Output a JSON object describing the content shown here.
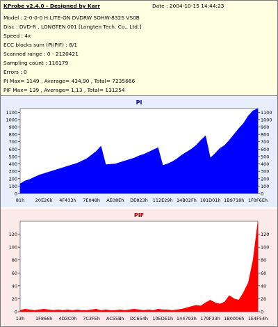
{
  "header": {
    "title": "KProbe v2.4.0 - Designed by Karr",
    "date": "Date : 2004-10-15 14:44:23"
  },
  "info_lines": [
    "Model : 2-0-0-0 H:LITE-ON DVDRW SOHW-832S  VS0B",
    "Disc : DVD-R , LONGTEN 001 [Longten Tech. Co., Ltd.]",
    "Speed : 4x",
    "ECC blocks sum (PI/PIF) : 8/1",
    "Scanned range : 0 - 2120421",
    "Sampling count : 116179",
    "Errors : 0",
    "PI Max= 1149 , Average= 434,90 , Total= 7235666",
    "PIF Max= 139 , Average= 1,13 , Total= 131254"
  ],
  "colors": {
    "info_bg": "#ffffe1",
    "chart_bg": "#ffffff",
    "pi_panel_bg": "#e9eefc",
    "pif_panel_bg": "#fce9e9",
    "pi_series": "#0000ff",
    "pif_series": "#ff0000",
    "pi_title": "#0000a0",
    "pif_title": "#a00000"
  },
  "chart_data": [
    {
      "type": "area",
      "title": "PI",
      "xlabel": "",
      "ylabel": "",
      "ylim": [
        0,
        1150
      ],
      "y_ticks": [
        0,
        100,
        200,
        300,
        400,
        500,
        600,
        700,
        800,
        900,
        1000,
        1100
      ],
      "x_ticks": [
        "81h",
        "20E26h",
        "4F433h",
        "7E048h",
        "AE08Eh",
        "DE823h",
        "112E29h",
        "14B02Fh",
        "181D01h",
        "1B9718h",
        "1F0F6Eh"
      ],
      "grid": false,
      "legend": "none",
      "series": [
        {
          "x": [
            0,
            0.02,
            0.04,
            0.06,
            0.08,
            0.1,
            0.12,
            0.14,
            0.16,
            0.18,
            0.2,
            0.22,
            0.24,
            0.26,
            0.28,
            0.3,
            0.32,
            0.34,
            0.36,
            0.38,
            0.4,
            0.42,
            0.44,
            0.46,
            0.48,
            0.5,
            0.52,
            0.54,
            0.56,
            0.58,
            0.6,
            0.62,
            0.64,
            0.66,
            0.68,
            0.7,
            0.72,
            0.74,
            0.76,
            0.78,
            0.8,
            0.82,
            0.84,
            0.86,
            0.88,
            0.9,
            0.92,
            0.94,
            0.96,
            0.98,
            1
          ],
          "values": [
            130,
            170,
            190,
            220,
            250,
            270,
            290,
            310,
            330,
            350,
            370,
            390,
            410,
            440,
            470,
            520,
            570,
            640,
            390,
            395,
            400,
            420,
            440,
            460,
            480,
            510,
            530,
            560,
            590,
            620,
            380,
            400,
            430,
            470,
            520,
            560,
            600,
            650,
            720,
            780,
            480,
            540,
            610,
            650,
            720,
            800,
            880,
            950,
            1050,
            1120,
            1149
          ]
        }
      ]
    },
    {
      "type": "area",
      "title": "PIF",
      "xlabel": "",
      "ylabel": "",
      "ylim": [
        0,
        140
      ],
      "y_ticks": [
        0,
        20,
        40,
        60,
        80,
        100,
        120
      ],
      "x_ticks": [
        "13h",
        "1F866h",
        "4D3C0h",
        "7C3FEh",
        "AC55Bh",
        "DC654h",
        "10EDE1h",
        "144793h",
        "179F33h",
        "1B0006h",
        "1E4F54h"
      ],
      "grid": false,
      "legend": "none",
      "series": [
        {
          "x": [
            0,
            0.02,
            0.04,
            0.06,
            0.08,
            0.1,
            0.12,
            0.14,
            0.16,
            0.18,
            0.2,
            0.22,
            0.24,
            0.26,
            0.28,
            0.3,
            0.32,
            0.34,
            0.36,
            0.38,
            0.4,
            0.42,
            0.44,
            0.46,
            0.48,
            0.5,
            0.52,
            0.54,
            0.56,
            0.58,
            0.6,
            0.62,
            0.64,
            0.66,
            0.68,
            0.7,
            0.72,
            0.74,
            0.76,
            0.78,
            0.8,
            0.82,
            0.84,
            0.86,
            0.88,
            0.9,
            0.92,
            0.94,
            0.96,
            0.98,
            1
          ],
          "values": [
            2,
            4,
            3,
            2,
            3,
            4,
            3,
            2,
            3,
            2,
            3,
            2,
            3,
            2,
            2,
            3,
            4,
            2,
            3,
            2,
            2,
            3,
            2,
            3,
            4,
            3,
            2,
            3,
            2,
            4,
            3,
            3,
            2,
            3,
            4,
            6,
            8,
            10,
            9,
            14,
            18,
            14,
            12,
            15,
            25,
            20,
            18,
            30,
            45,
            80,
            139
          ]
        }
      ]
    }
  ]
}
